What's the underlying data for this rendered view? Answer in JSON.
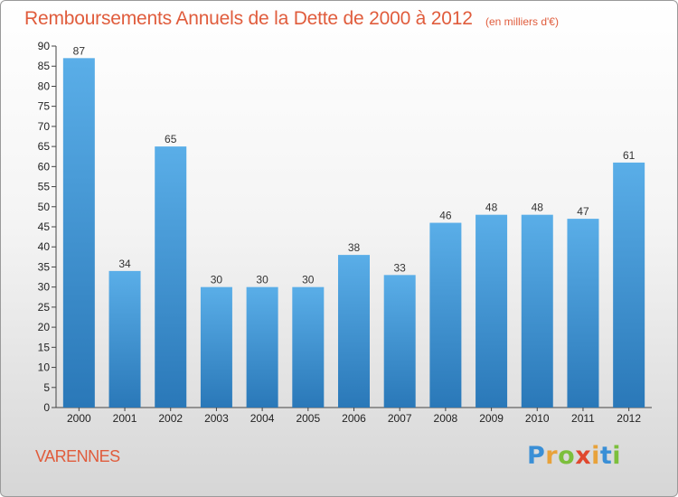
{
  "header": {
    "title": "Remboursements Annuels de la Dette de 2000 à 2012",
    "subtitle": "(en milliers d'€)"
  },
  "commune": "VARENNES",
  "logo": {
    "letters": [
      {
        "char": "P",
        "color": "#3a8fd6"
      },
      {
        "char": "r",
        "color": "#e8a23a"
      },
      {
        "char": "o",
        "color": "#7cbf3c"
      },
      {
        "char": "x",
        "color": "#e0482f"
      },
      {
        "char": "i",
        "color": "#e8a23a"
      },
      {
        "char": "t",
        "color": "#3a8fd6"
      },
      {
        "char": "i",
        "color": "#7cbf3c"
      }
    ]
  },
  "colors": {
    "accent": "#e05c3c",
    "bar_top": "#5aaee8",
    "bar_bottom": "#2a78b8"
  },
  "chart_data": {
    "type": "bar",
    "title": "Remboursements Annuels de la Dette de 2000 à 2012",
    "subtitle": "(en milliers d'€)",
    "categories": [
      "2000",
      "2001",
      "2002",
      "2003",
      "2004",
      "2005",
      "2006",
      "2007",
      "2008",
      "2009",
      "2010",
      "2011",
      "2012"
    ],
    "values": [
      87,
      34,
      65,
      30,
      30,
      30,
      38,
      33,
      46,
      48,
      48,
      47,
      61
    ],
    "ylim": [
      0,
      90
    ],
    "yticks": [
      0,
      5,
      10,
      15,
      20,
      25,
      30,
      35,
      40,
      45,
      50,
      55,
      60,
      65,
      70,
      75,
      80,
      85,
      90
    ],
    "grid": false,
    "xlabel": "",
    "ylabel": ""
  }
}
